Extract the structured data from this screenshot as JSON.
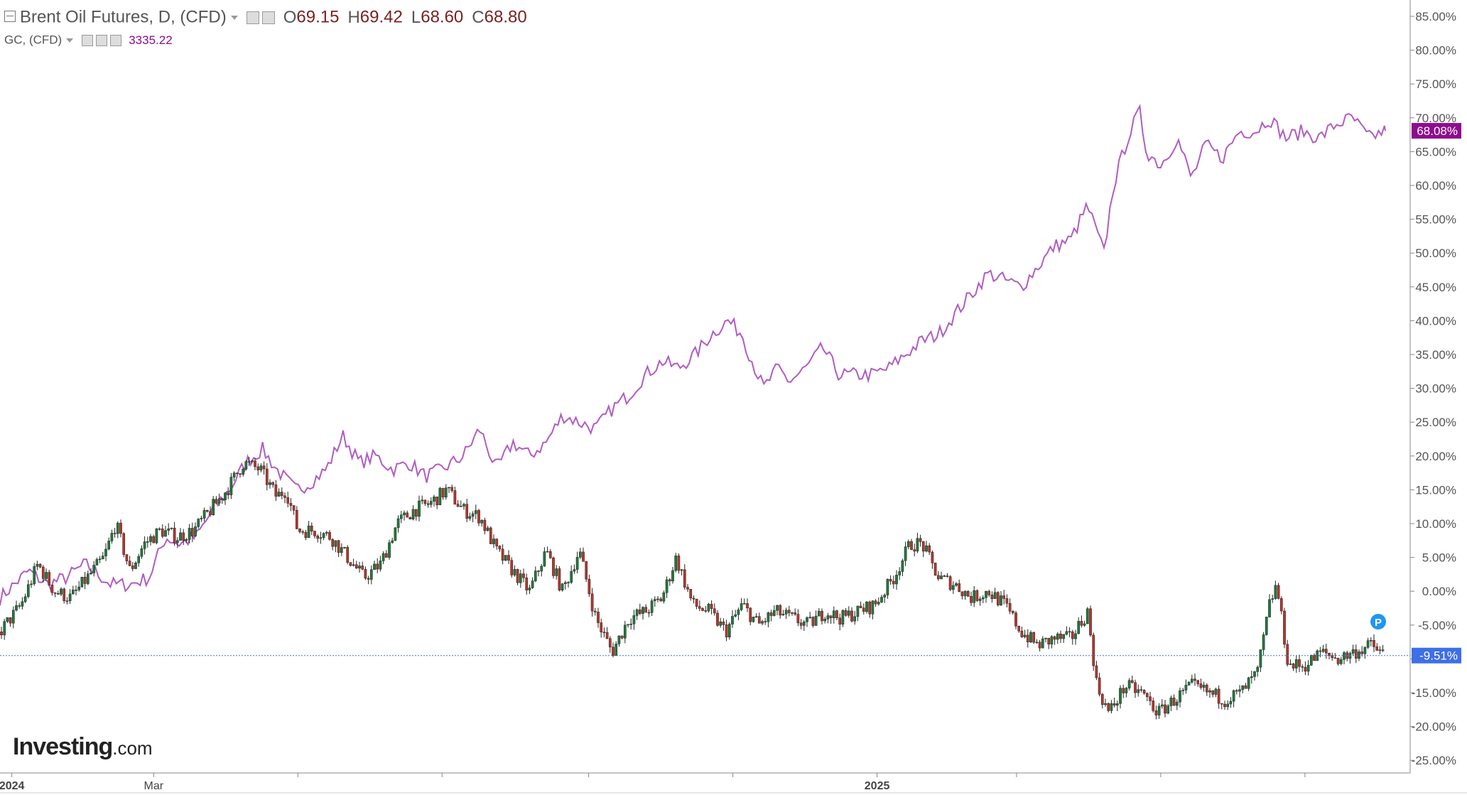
{
  "legend": {
    "main_title": "Brent Oil Futures, D, (CFD)",
    "open_label": "O",
    "open": "69.15",
    "high_label": "H",
    "high": "69.42",
    "low_label": "L",
    "low": "68.60",
    "close_label": "C",
    "close": "68.80",
    "compare_title": "GC, (CFD)",
    "compare_value": "3335.22"
  },
  "logo": {
    "brand": "Investing",
    "suffix": ".com"
  },
  "colors": {
    "up": "#1f7a3c",
    "down": "#b8362b",
    "compare_line": "#b05cc2",
    "compare_badge": "#8e0c8e",
    "main_badge": "#3f6fe6",
    "axis": "#555555"
  },
  "chart_data": {
    "type": "candlestick+line",
    "ylim": [
      -25,
      85
    ],
    "y_unit": "%",
    "y_ticks": [
      "85.00%",
      "80.00%",
      "75.00%",
      "70.00%",
      "65.00%",
      "60.00%",
      "55.00%",
      "50.00%",
      "45.00%",
      "40.00%",
      "35.00%",
      "30.00%",
      "25.00%",
      "20.00%",
      "15.00%",
      "10.00%",
      "5.00%",
      "0.00%",
      "-5.00%",
      "-10.00%",
      "-15.00%",
      "-20.00%",
      "-25.00%"
    ],
    "x_ticks": [
      {
        "label": "2024",
        "date": "2024-01-01",
        "bold": true
      },
      {
        "label": "Mar",
        "date": "2024-03-01",
        "bold": false
      },
      {
        "label": "",
        "date": "2024-05-01"
      },
      {
        "label": "",
        "date": "2024-07-01"
      },
      {
        "label": "",
        "date": "2024-09-01"
      },
      {
        "label": "",
        "date": "2024-11-01"
      },
      {
        "label": "2025",
        "date": "2025-01-01",
        "bold": true
      },
      {
        "label": "",
        "date": "2025-03-01"
      },
      {
        "label": "",
        "date": "2025-05-01"
      },
      {
        "label": "",
        "date": "2025-07-01"
      }
    ],
    "x_range": [
      "2023-12-27",
      "2025-08-07"
    ],
    "series": [
      {
        "name": "Brent Oil Futures, D, (CFD)",
        "kind": "candlestick",
        "last_badge": "-9.51%",
        "points": [
          [
            "2023-12-27",
            -6
          ],
          [
            "2024-01-05",
            -2
          ],
          [
            "2024-01-12",
            4
          ],
          [
            "2024-01-19",
            0
          ],
          [
            "2024-01-26",
            -1
          ],
          [
            "2024-02-02",
            2
          ],
          [
            "2024-02-09",
            5
          ],
          [
            "2024-02-14",
            10
          ],
          [
            "2024-02-20",
            3
          ],
          [
            "2024-02-26",
            7
          ],
          [
            "2024-03-04",
            9
          ],
          [
            "2024-03-11",
            8
          ],
          [
            "2024-03-18",
            9
          ],
          [
            "2024-03-25",
            12
          ],
          [
            "2024-04-01",
            15
          ],
          [
            "2024-04-08",
            19
          ],
          [
            "2024-04-15",
            18
          ],
          [
            "2024-04-22",
            14
          ],
          [
            "2024-04-26",
            15
          ],
          [
            "2024-05-01",
            9
          ],
          [
            "2024-05-08",
            9
          ],
          [
            "2024-05-15",
            8
          ],
          [
            "2024-05-22",
            5
          ],
          [
            "2024-05-29",
            2
          ],
          [
            "2024-06-05",
            4
          ],
          [
            "2024-06-12",
            10
          ],
          [
            "2024-06-19",
            12
          ],
          [
            "2024-06-26",
            13
          ],
          [
            "2024-07-03",
            15
          ],
          [
            "2024-07-10",
            12
          ],
          [
            "2024-07-17",
            11
          ],
          [
            "2024-07-24",
            6
          ],
          [
            "2024-07-31",
            3
          ],
          [
            "2024-08-07",
            0
          ],
          [
            "2024-08-14",
            6
          ],
          [
            "2024-08-21",
            0
          ],
          [
            "2024-08-28",
            6
          ],
          [
            "2024-09-04",
            -4
          ],
          [
            "2024-09-11",
            -9
          ],
          [
            "2024-09-18",
            -4
          ],
          [
            "2024-09-25",
            -3
          ],
          [
            "2024-10-02",
            -1
          ],
          [
            "2024-10-08",
            5
          ],
          [
            "2024-10-15",
            -2
          ],
          [
            "2024-10-22",
            -3
          ],
          [
            "2024-10-29",
            -6
          ],
          [
            "2024-11-05",
            -2
          ],
          [
            "2024-11-12",
            -5
          ],
          [
            "2024-11-19",
            -3
          ],
          [
            "2024-11-26",
            -4
          ],
          [
            "2024-12-03",
            -5
          ],
          [
            "2024-12-10",
            -3
          ],
          [
            "2024-12-17",
            -4
          ],
          [
            "2024-12-24",
            -3
          ],
          [
            "2024-12-31",
            -2
          ],
          [
            "2025-01-08",
            2
          ],
          [
            "2025-01-15",
            7
          ],
          [
            "2025-01-20",
            7
          ],
          [
            "2025-01-27",
            2
          ],
          [
            "2025-02-03",
            1
          ],
          [
            "2025-02-10",
            -1
          ],
          [
            "2025-02-17",
            0
          ],
          [
            "2025-02-24",
            -2
          ],
          [
            "2025-03-03",
            -6
          ],
          [
            "2025-03-10",
            -8
          ],
          [
            "2025-03-17",
            -7
          ],
          [
            "2025-03-24",
            -7
          ],
          [
            "2025-03-31",
            -3
          ],
          [
            "2025-04-04",
            -14
          ],
          [
            "2025-04-09",
            -18
          ],
          [
            "2025-04-16",
            -14
          ],
          [
            "2025-04-23",
            -15
          ],
          [
            "2025-04-30",
            -18
          ],
          [
            "2025-05-07",
            -16
          ],
          [
            "2025-05-14",
            -14
          ],
          [
            "2025-05-21",
            -15
          ],
          [
            "2025-05-28",
            -16
          ],
          [
            "2025-06-04",
            -15
          ],
          [
            "2025-06-11",
            -12
          ],
          [
            "2025-06-16",
            -2
          ],
          [
            "2025-06-19",
            1
          ],
          [
            "2025-06-24",
            -11
          ],
          [
            "2025-07-01",
            -11
          ],
          [
            "2025-07-08",
            -9
          ],
          [
            "2025-07-15",
            -10
          ],
          [
            "2025-07-22",
            -9
          ],
          [
            "2025-07-29",
            -8
          ],
          [
            "2025-08-04",
            -9.5
          ]
        ]
      },
      {
        "name": "GC, (CFD)",
        "kind": "line",
        "last_badge": "68.08%",
        "points": [
          [
            "2023-12-27",
            -1
          ],
          [
            "2024-01-08",
            3
          ],
          [
            "2024-01-16",
            1
          ],
          [
            "2024-01-24",
            2
          ],
          [
            "2024-02-01",
            4
          ],
          [
            "2024-02-12",
            1
          ],
          [
            "2024-02-20",
            1
          ],
          [
            "2024-02-28",
            2
          ],
          [
            "2024-03-06",
            8
          ],
          [
            "2024-03-12",
            7
          ],
          [
            "2024-03-19",
            8
          ],
          [
            "2024-03-26",
            12
          ],
          [
            "2024-04-02",
            15
          ],
          [
            "2024-04-09",
            19
          ],
          [
            "2024-04-16",
            21
          ],
          [
            "2024-04-22",
            18
          ],
          [
            "2024-04-30",
            15
          ],
          [
            "2024-05-06",
            16
          ],
          [
            "2024-05-13",
            18
          ],
          [
            "2024-05-20",
            23
          ],
          [
            "2024-05-27",
            19
          ],
          [
            "2024-06-03",
            20
          ],
          [
            "2024-06-10",
            18
          ],
          [
            "2024-06-17",
            19
          ],
          [
            "2024-06-24",
            17
          ],
          [
            "2024-07-01",
            18
          ],
          [
            "2024-07-10",
            20
          ],
          [
            "2024-07-17",
            24
          ],
          [
            "2024-07-24",
            18
          ],
          [
            "2024-07-31",
            22
          ],
          [
            "2024-08-07",
            20
          ],
          [
            "2024-08-14",
            22
          ],
          [
            "2024-08-21",
            26
          ],
          [
            "2024-08-28",
            25
          ],
          [
            "2024-09-04",
            24
          ],
          [
            "2024-09-11",
            27
          ],
          [
            "2024-09-18",
            29
          ],
          [
            "2024-09-25",
            32
          ],
          [
            "2024-10-02",
            34
          ],
          [
            "2024-10-09",
            33
          ],
          [
            "2024-10-16",
            35
          ],
          [
            "2024-10-23",
            38
          ],
          [
            "2024-10-30",
            40
          ],
          [
            "2024-11-05",
            38
          ],
          [
            "2024-11-08",
            35
          ],
          [
            "2024-11-14",
            30
          ],
          [
            "2024-11-20",
            33
          ],
          [
            "2024-11-25",
            31
          ],
          [
            "2024-12-02",
            33
          ],
          [
            "2024-12-09",
            36
          ],
          [
            "2024-12-16",
            32
          ],
          [
            "2024-12-23",
            32
          ],
          [
            "2024-12-30",
            32
          ],
          [
            "2025-01-06",
            33
          ],
          [
            "2025-01-13",
            35
          ],
          [
            "2025-01-20",
            37
          ],
          [
            "2025-01-27",
            38
          ],
          [
            "2025-02-03",
            41
          ],
          [
            "2025-02-10",
            44
          ],
          [
            "2025-02-17",
            47
          ],
          [
            "2025-02-24",
            46
          ],
          [
            "2025-03-03",
            45
          ],
          [
            "2025-03-10",
            48
          ],
          [
            "2025-03-17",
            51
          ],
          [
            "2025-03-24",
            52
          ],
          [
            "2025-03-31",
            57
          ],
          [
            "2025-04-07",
            50
          ],
          [
            "2025-04-11",
            60
          ],
          [
            "2025-04-17",
            67
          ],
          [
            "2025-04-22",
            71
          ],
          [
            "2025-04-25",
            65
          ],
          [
            "2025-05-01",
            63
          ],
          [
            "2025-05-08",
            67
          ],
          [
            "2025-05-14",
            61
          ],
          [
            "2025-05-20",
            66
          ],
          [
            "2025-05-27",
            64
          ],
          [
            "2025-06-03",
            68
          ],
          [
            "2025-06-10",
            68
          ],
          [
            "2025-06-16",
            70
          ],
          [
            "2025-06-23",
            67
          ],
          [
            "2025-06-30",
            68
          ],
          [
            "2025-07-07",
            67
          ],
          [
            "2025-07-14",
            69
          ],
          [
            "2025-07-21",
            70
          ],
          [
            "2025-07-28",
            67
          ],
          [
            "2025-08-04",
            68.08
          ]
        ]
      }
    ]
  }
}
